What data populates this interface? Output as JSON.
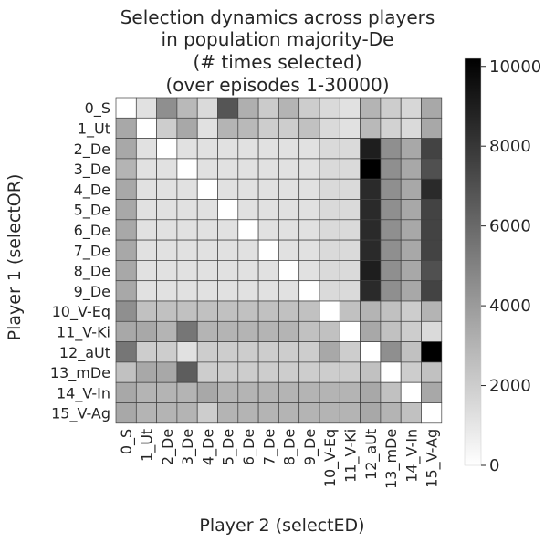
{
  "chart_data": {
    "type": "heatmap",
    "title_lines": [
      "Selection dynamics across players",
      "in population majority-De",
      "(# times selected)",
      "(over episodes 1-30000)"
    ],
    "xlabel": "Player 2 (selectED)",
    "ylabel": "Player 1 (selectOR)",
    "x_categories": [
      "0_S",
      "1_Ut",
      "2_De",
      "3_De",
      "4_De",
      "5_De",
      "6_De",
      "7_De",
      "8_De",
      "9_De",
      "10_V-Eq",
      "11_V-Ki",
      "12_aUt",
      "13_mDe",
      "14_V-In",
      "15_V-Ag"
    ],
    "y_categories": [
      "0_S",
      "1_Ut",
      "2_De",
      "3_De",
      "4_De",
      "5_De",
      "6_De",
      "7_De",
      "8_De",
      "9_De",
      "10_V-Eq",
      "11_V-Ki",
      "12_aUt",
      "13_mDe",
      "14_V-In",
      "15_V-Ag"
    ],
    "values": [
      [
        0,
        1200,
        4500,
        2800,
        1500,
        6800,
        3200,
        2100,
        3000,
        2000,
        1500,
        1200,
        3000,
        2000,
        1600,
        3500
      ],
      [
        3500,
        0,
        2000,
        3500,
        1200,
        3000,
        2800,
        2000,
        2000,
        2500,
        1500,
        1200,
        2800,
        1800,
        1500,
        3500
      ],
      [
        3500,
        1200,
        0,
        1200,
        1200,
        1200,
        1200,
        1200,
        1200,
        1200,
        1500,
        1500,
        9000,
        4500,
        3500,
        7500
      ],
      [
        3000,
        1200,
        1200,
        0,
        1200,
        1200,
        1200,
        1200,
        1200,
        1200,
        1500,
        1500,
        10200,
        4500,
        3500,
        7000
      ],
      [
        3500,
        1200,
        1200,
        1200,
        0,
        1200,
        1200,
        1200,
        1200,
        1200,
        1500,
        1500,
        8500,
        4500,
        3500,
        8500
      ],
      [
        3500,
        1200,
        1200,
        1200,
        1200,
        0,
        1200,
        1200,
        1200,
        1200,
        1500,
        1500,
        8500,
        4500,
        3500,
        7500
      ],
      [
        3500,
        1200,
        1200,
        1200,
        1200,
        1200,
        0,
        1200,
        1200,
        1200,
        1500,
        1500,
        8500,
        4500,
        3500,
        7500
      ],
      [
        3500,
        1200,
        1200,
        1200,
        1200,
        1200,
        1200,
        0,
        1200,
        1200,
        1500,
        1500,
        8500,
        4500,
        3500,
        7500
      ],
      [
        3500,
        1200,
        1200,
        1200,
        1200,
        1200,
        1200,
        1200,
        0,
        1200,
        1500,
        1500,
        9000,
        4500,
        3500,
        7000
      ],
      [
        3500,
        1200,
        1200,
        1200,
        1200,
        1200,
        1200,
        1200,
        1200,
        0,
        1500,
        1500,
        8500,
        4500,
        3500,
        7500
      ],
      [
        4500,
        2500,
        2500,
        2500,
        2500,
        2500,
        2500,
        2500,
        2500,
        2500,
        0,
        2500,
        3000,
        2500,
        2000,
        3000
      ],
      [
        3500,
        3500,
        3000,
        5500,
        3000,
        3000,
        3000,
        3000,
        3000,
        2500,
        2500,
        0,
        3500,
        2500,
        2000,
        1500
      ],
      [
        5500,
        2000,
        2000,
        1200,
        2000,
        2000,
        2000,
        2000,
        2000,
        2000,
        3500,
        2000,
        0,
        4500,
        2500,
        10200
      ],
      [
        2500,
        3500,
        3500,
        6500,
        2000,
        2000,
        2000,
        2000,
        2000,
        2000,
        2000,
        2000,
        2500,
        0,
        2000,
        2500
      ],
      [
        3500,
        3000,
        3000,
        3000,
        3500,
        3000,
        3000,
        3000,
        3000,
        3000,
        3000,
        3000,
        3500,
        2500,
        0,
        3500
      ],
      [
        3500,
        3000,
        3000,
        3000,
        2000,
        3000,
        3000,
        3000,
        3000,
        3000,
        3000,
        3000,
        3500,
        3000,
        2500,
        0
      ]
    ],
    "colorbar": {
      "min": 0,
      "max": 10200,
      "ticks": [
        0,
        2000,
        4000,
        6000,
        8000,
        10000
      ],
      "colormap": "white-to-black"
    }
  }
}
